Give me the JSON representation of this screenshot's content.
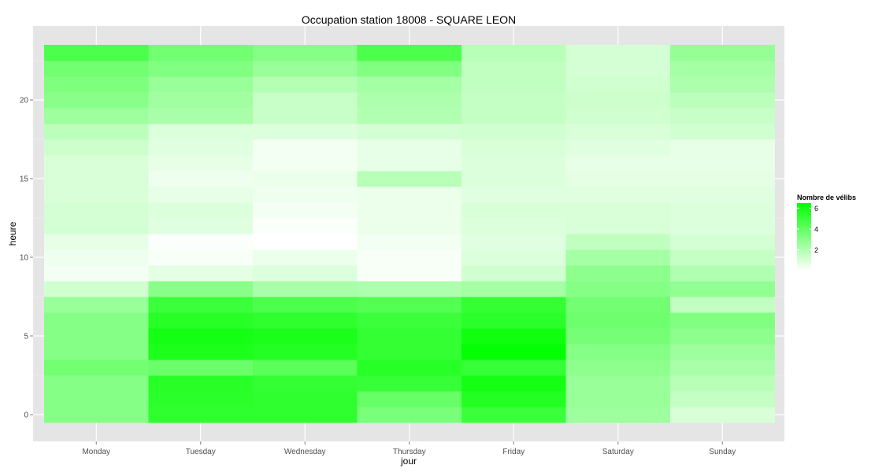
{
  "chart_data": {
    "type": "heatmap",
    "title": "Occupation station 18008 - SQUARE LEON",
    "xlabel": "jour",
    "ylabel": "heure",
    "x_categories": [
      "Monday",
      "Tuesday",
      "Wednesday",
      "Thursday",
      "Friday",
      "Saturday",
      "Sunday"
    ],
    "y_hours": [
      0,
      1,
      2,
      3,
      4,
      5,
      6,
      7,
      8,
      9,
      10,
      11,
      12,
      13,
      14,
      15,
      16,
      17,
      18,
      19,
      20,
      21,
      22,
      23
    ],
    "y_ticks": [
      0,
      5,
      10,
      15,
      20
    ],
    "ylim": [
      -0.5,
      23.5
    ],
    "grid": true,
    "legend": {
      "title": "Nombre de vélibs",
      "placement": "right",
      "min": 0,
      "max": 6.5,
      "ticks": [
        2,
        4,
        6
      ],
      "low_color": "#ffffff",
      "high_color": "#00ff00"
    },
    "values": [
      [
        3.1,
        5.3,
        5.3,
        3.4,
        5.0,
        2.5,
        1.0
      ],
      [
        3.1,
        5.4,
        5.3,
        3.9,
        5.6,
        2.6,
        1.5
      ],
      [
        3.1,
        5.5,
        5.2,
        5.1,
        6.0,
        2.6,
        1.8
      ],
      [
        3.6,
        3.8,
        4.2,
        5.5,
        5.1,
        2.9,
        2.2
      ],
      [
        3.1,
        5.8,
        5.6,
        5.2,
        6.4,
        3.1,
        2.5
      ],
      [
        3.1,
        6.0,
        5.8,
        5.2,
        6.1,
        3.5,
        2.9
      ],
      [
        3.1,
        5.5,
        5.3,
        5.0,
        5.4,
        3.7,
        3.2
      ],
      [
        2.6,
        5.0,
        4.6,
        4.4,
        5.2,
        3.6,
        1.6
      ],
      [
        1.2,
        3.0,
        2.2,
        2.1,
        2.3,
        3.1,
        2.8
      ],
      [
        0.3,
        0.7,
        0.9,
        0.2,
        1.2,
        2.9,
        2.0
      ],
      [
        0.4,
        0.2,
        0.5,
        0.2,
        0.9,
        2.3,
        1.5
      ],
      [
        0.6,
        0.1,
        0.0,
        0.3,
        0.8,
        1.6,
        1.1
      ],
      [
        1.1,
        0.8,
        0.1,
        0.5,
        0.9,
        1.0,
        0.9
      ],
      [
        1.1,
        0.9,
        0.3,
        0.5,
        1.0,
        1.0,
        0.9
      ],
      [
        1.0,
        0.6,
        0.4,
        0.5,
        0.8,
        0.8,
        0.8
      ],
      [
        1.0,
        0.4,
        0.5,
        1.8,
        0.9,
        0.7,
        0.7
      ],
      [
        1.0,
        0.6,
        0.3,
        0.6,
        0.9,
        0.6,
        0.6
      ],
      [
        1.3,
        0.8,
        0.3,
        0.6,
        1.0,
        0.8,
        0.6
      ],
      [
        1.7,
        0.9,
        0.9,
        1.1,
        1.2,
        1.0,
        1.2
      ],
      [
        2.5,
        2.2,
        1.4,
        2.0,
        1.5,
        1.2,
        1.4
      ],
      [
        3.0,
        2.4,
        1.4,
        2.1,
        1.5,
        1.3,
        1.7
      ],
      [
        3.3,
        2.6,
        1.9,
        2.3,
        1.6,
        1.2,
        2.1
      ],
      [
        3.6,
        3.2,
        2.6,
        3.2,
        1.6,
        1.1,
        2.3
      ],
      [
        4.6,
        3.6,
        3.1,
        4.6,
        1.8,
        1.1,
        2.7
      ]
    ]
  }
}
